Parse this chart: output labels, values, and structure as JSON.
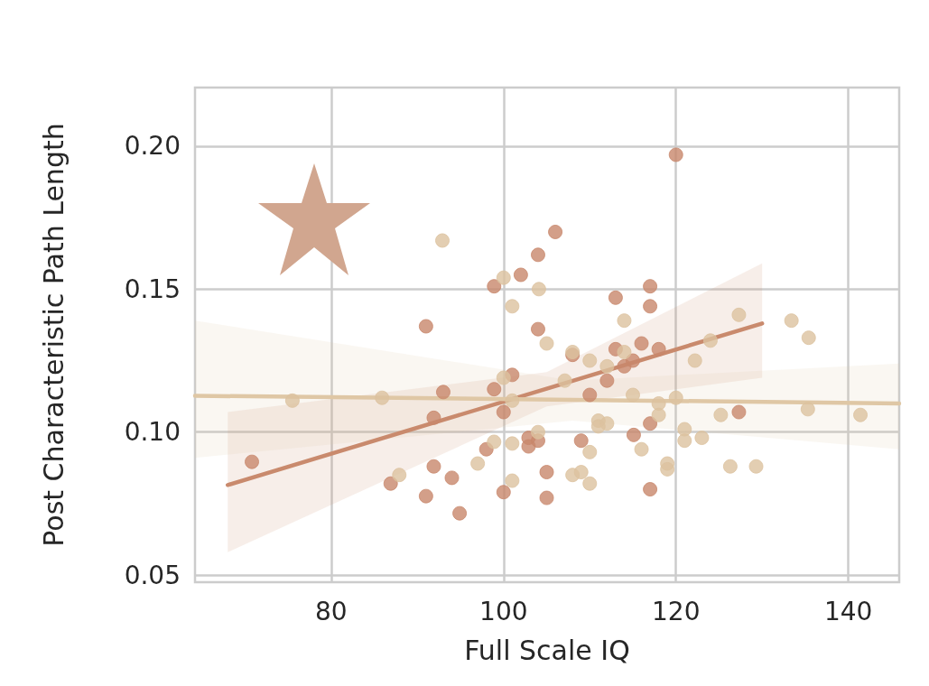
{
  "chart_data": {
    "type": "scatter",
    "xlabel": "Full Scale IQ",
    "ylabel": "Post Characteristic Path Length",
    "xlim": [
      64.2,
      145.9
    ],
    "ylim": [
      0.0475,
      0.2205
    ],
    "xticks": [
      80,
      100,
      120,
      140
    ],
    "yticks": [
      {
        "value": 0.05,
        "label": "0.05"
      },
      {
        "value": 0.1,
        "label": "0.10"
      },
      {
        "value": 0.15,
        "label": "0.15"
      },
      {
        "value": 0.2,
        "label": "0.20"
      }
    ],
    "grid": true,
    "marker": "circle",
    "series": [
      {
        "color": "#c8876b",
        "x": [
          70.8,
          86.9,
          91.0,
          91.0,
          91.9,
          91.9,
          93.0,
          94.0,
          94.9,
          98.0,
          98.9,
          98.9,
          100,
          100,
          101,
          102,
          102.9,
          102.9,
          104,
          104,
          104,
          105,
          105,
          106,
          108,
          109,
          110,
          112,
          113,
          113,
          114,
          115,
          115.1,
          116,
          117,
          117,
          117,
          117,
          118,
          120,
          127.3
        ],
        "values": [
          0.0896,
          0.082,
          0.137,
          0.0776,
          0.105,
          0.088,
          0.114,
          0.084,
          0.0716,
          0.094,
          0.151,
          0.115,
          0.107,
          0.079,
          0.12,
          0.155,
          0.098,
          0.095,
          0.162,
          0.136,
          0.097,
          0.086,
          0.077,
          0.17,
          0.127,
          0.097,
          0.113,
          0.118,
          0.147,
          0.129,
          0.123,
          0.125,
          0.099,
          0.131,
          0.151,
          0.144,
          0.103,
          0.08,
          0.129,
          0.197,
          0.107
        ]
      },
      {
        "color": "#dcc29f",
        "x": [
          75.5,
          85.9,
          87.9,
          92.9,
          97.0,
          98.9,
          100,
          100,
          101,
          101,
          101,
          101,
          104.1,
          104,
          105,
          107.1,
          108,
          108,
          109,
          110,
          110,
          110,
          111,
          111,
          112,
          112,
          114,
          114,
          115,
          116,
          118,
          118,
          119,
          119,
          120,
          121,
          121,
          122.2,
          123,
          124,
          125.2,
          126.3,
          129.3,
          127.3,
          133.4,
          135.4,
          135.3,
          141.4
        ],
        "values": [
          0.111,
          0.112,
          0.085,
          0.167,
          0.089,
          0.0966,
          0.119,
          0.154,
          0.144,
          0.111,
          0.096,
          0.083,
          0.15,
          0.1,
          0.131,
          0.118,
          0.128,
          0.085,
          0.086,
          0.125,
          0.093,
          0.082,
          0.104,
          0.102,
          0.123,
          0.103,
          0.139,
          0.128,
          0.113,
          0.094,
          0.11,
          0.106,
          0.089,
          0.087,
          0.112,
          0.101,
          0.097,
          0.125,
          0.098,
          0.132,
          0.106,
          0.088,
          0.088,
          0.141,
          0.139,
          0.133,
          0.108,
          0.106
        ]
      },
      {
        "type": "line",
        "marker": "none",
        "color": "#c98a6d",
        "x": [
          68,
          105,
          130
        ],
        "values": [
          0.0815,
          0.1152,
          0.138
        ],
        "lower": [
          0.058,
          0.109,
          0.119
        ],
        "upper": [
          0.107,
          0.121,
          0.159
        ]
      },
      {
        "type": "line",
        "marker": "none",
        "color": "#dfc7a5",
        "x": [
          64.2,
          108,
          145.9
        ],
        "values": [
          0.1127,
          0.1113,
          0.11
        ],
        "lower": [
          0.091,
          0.104,
          0.094
        ],
        "upper": [
          0.139,
          0.118,
          0.124
        ]
      }
    ]
  }
}
